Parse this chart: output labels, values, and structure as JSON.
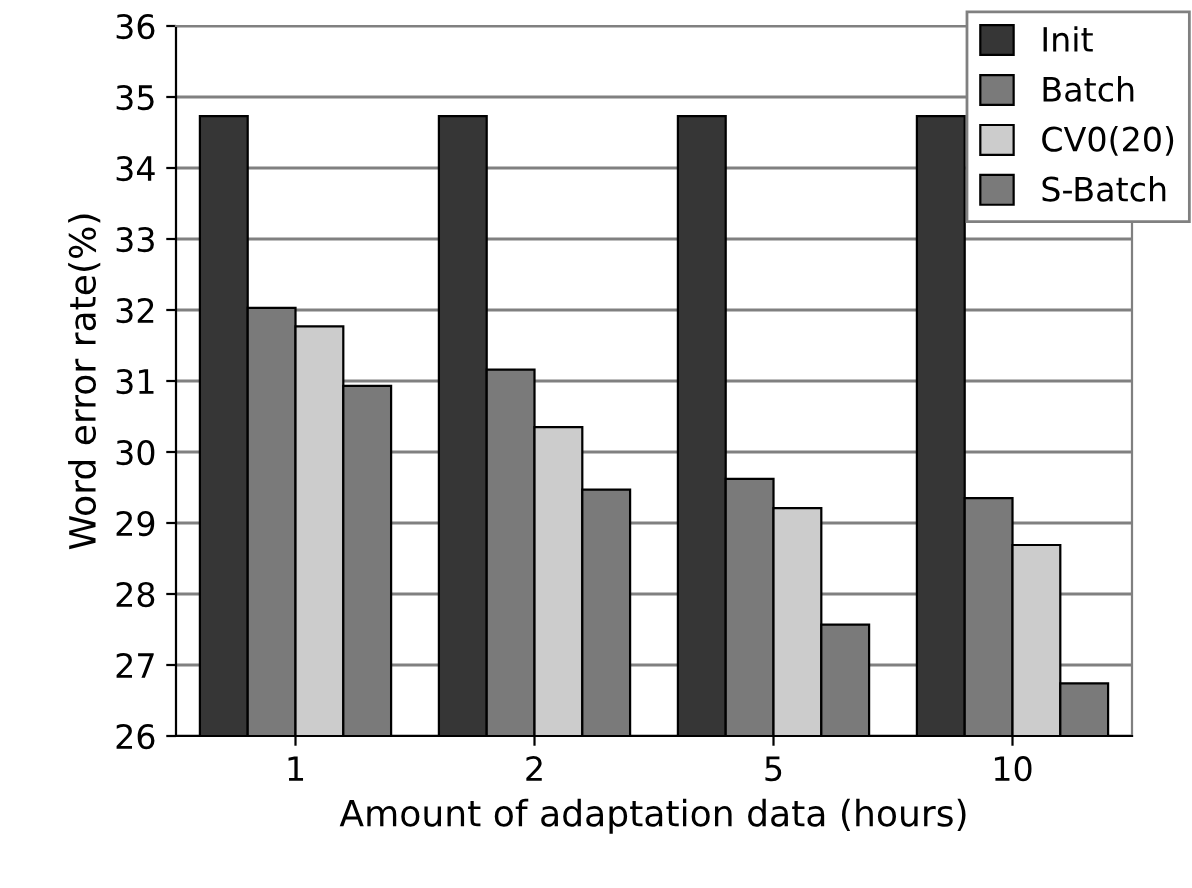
{
  "chart_data": {
    "type": "bar",
    "xlabel": "Amount of adaptation data (hours)",
    "ylabel": "Word error rate(%)",
    "categories": [
      "1",
      "2",
      "5",
      "10"
    ],
    "series": [
      {
        "name": "Init",
        "color": "#363636",
        "values": [
          34.73,
          34.73,
          34.73,
          34.73
        ]
      },
      {
        "name": "Batch",
        "color": "#7a7a7a",
        "values": [
          32.03,
          31.16,
          29.62,
          29.35
        ]
      },
      {
        "name": "CV0(20)",
        "color": "#cccccc",
        "values": [
          31.77,
          30.35,
          29.21,
          28.69
        ]
      },
      {
        "name": "S-Batch",
        "color": "#7a7a7a",
        "values": [
          30.93,
          29.47,
          27.57,
          26.74
        ]
      }
    ],
    "ylim": [
      26,
      36
    ],
    "yticks": [
      26,
      27,
      28,
      29,
      30,
      31,
      32,
      33,
      34,
      35,
      36
    ],
    "grid": "y",
    "legend": "top right"
  }
}
